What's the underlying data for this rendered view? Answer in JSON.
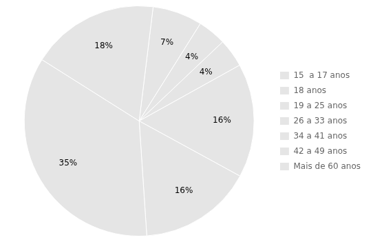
{
  "chart_data": {
    "type": "pie",
    "categories": [
      "15  a 17 anos",
      "18 anos",
      "19 a 25 anos",
      "26 a 33 anos",
      "34 a 41 anos",
      "42 a 49 anos",
      "Mais de 60 anos"
    ],
    "values": [
      7,
      4,
      4,
      16,
      16,
      35,
      18
    ],
    "value_labels": [
      "7%",
      "4%",
      "4%",
      "16%",
      "16%",
      "35%",
      "18%"
    ],
    "data_labels": true,
    "legend": "right"
  }
}
